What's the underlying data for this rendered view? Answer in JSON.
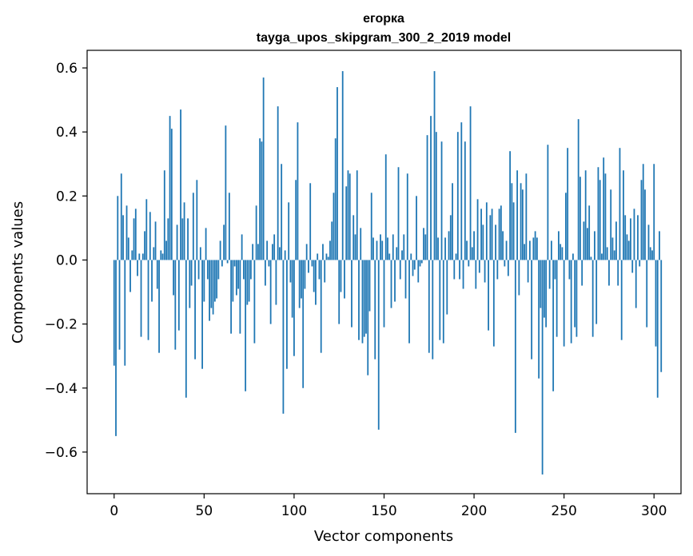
{
  "chart_data": {
    "type": "bar",
    "title": "егорка",
    "subtitle": "tayga_upos_skipgram_300_2_2019 model",
    "xlabel": "Vector components",
    "ylabel": "Components values",
    "xlim": [
      -15,
      315
    ],
    "ylim": [
      -0.73,
      0.655
    ],
    "x_ticks": [
      0,
      50,
      100,
      150,
      200,
      250,
      300
    ],
    "x_tick_labels": [
      "0",
      "50",
      "100",
      "150",
      "200",
      "250",
      "300"
    ],
    "y_ticks": [
      0.6,
      0.4,
      0.2,
      0.0,
      -0.2,
      -0.4,
      -0.6
    ],
    "y_tick_labels": [
      "0.6",
      "0.4",
      "0.2",
      "0.0",
      "−0.2",
      "−0.4",
      "−0.6"
    ],
    "grid": false,
    "bar_color": "#1f77b4",
    "values": [
      -0.33,
      -0.55,
      0.2,
      -0.28,
      0.27,
      0.14,
      -0.33,
      0.17,
      0.07,
      -0.1,
      0.03,
      0.13,
      0.16,
      -0.05,
      0.02,
      -0.24,
      0.02,
      0.09,
      0.19,
      -0.25,
      0.15,
      -0.13,
      0.04,
      0.12,
      -0.09,
      -0.29,
      0.03,
      0.02,
      0.28,
      0.06,
      0.13,
      0.45,
      0.41,
      -0.11,
      -0.28,
      0.11,
      -0.22,
      0.47,
      0.13,
      0.18,
      -0.43,
      0.13,
      -0.15,
      -0.08,
      0.21,
      -0.31,
      0.25,
      -0.06,
      0.04,
      -0.34,
      -0.13,
      0.1,
      -0.06,
      -0.19,
      -0.15,
      -0.17,
      -0.13,
      -0.12,
      -0.06,
      0.06,
      -0.02,
      0.11,
      0.42,
      -0.01,
      0.21,
      -0.23,
      -0.13,
      -0.02,
      -0.11,
      -0.09,
      -0.23,
      0.08,
      -0.06,
      -0.41,
      -0.14,
      -0.13,
      -0.06,
      0.05,
      -0.26,
      0.17,
      0.05,
      0.38,
      0.37,
      0.57,
      -0.08,
      0.06,
      -0.02,
      -0.2,
      0.05,
      0.08,
      -0.14,
      0.48,
      0.04,
      0.3,
      -0.48,
      0.03,
      -0.34,
      0.18,
      -0.07,
      -0.18,
      -0.3,
      0.25,
      0.43,
      -0.15,
      -0.12,
      -0.4,
      -0.09,
      0.05,
      -0.04,
      0.24,
      -0.02,
      -0.1,
      -0.14,
      0.02,
      -0.06,
      -0.29,
      0.05,
      -0.07,
      0.02,
      0.01,
      0.06,
      0.12,
      0.21,
      0.38,
      0.54,
      -0.2,
      -0.1,
      0.59,
      -0.12,
      0.23,
      0.28,
      0.27,
      -0.21,
      0.14,
      0.08,
      0.28,
      -0.25,
      0.1,
      -0.26,
      -0.24,
      -0.23,
      -0.36,
      -0.16,
      0.21,
      0.07,
      -0.31,
      0.06,
      -0.53,
      0.08,
      0.06,
      -0.21,
      0.33,
      0.07,
      0.02,
      -0.15,
      0.08,
      -0.13,
      0.04,
      0.29,
      -0.06,
      0.03,
      0.08,
      -0.12,
      0.27,
      -0.26,
      0.02,
      -0.05,
      -0.03,
      0.2,
      -0.07,
      -0.02,
      -0.01,
      0.1,
      0.08,
      0.39,
      -0.29,
      0.45,
      -0.31,
      0.59,
      0.4,
      0.07,
      -0.25,
      0.37,
      -0.26,
      0.07,
      -0.17,
      0.09,
      0.14,
      0.24,
      -0.06,
      0.02,
      0.4,
      -0.06,
      0.43,
      -0.09,
      0.37,
      0.06,
      -0.02,
      0.48,
      0.04,
      0.09,
      -0.09,
      0.19,
      -0.04,
      0.16,
      0.11,
      -0.07,
      0.18,
      -0.22,
      0.14,
      0.16,
      -0.27,
      0.11,
      -0.06,
      0.16,
      0.17,
      0.09,
      -0.02,
      0.06,
      -0.05,
      0.34,
      0.24,
      0.18,
      -0.54,
      0.28,
      -0.11,
      0.24,
      0.22,
      0.05,
      0.27,
      -0.07,
      0.06,
      -0.31,
      0.07,
      0.09,
      0.07,
      -0.37,
      -0.15,
      -0.67,
      -0.18,
      -0.21,
      0.36,
      -0.09,
      0.06,
      -0.41,
      -0.06,
      -0.24,
      0.09,
      0.05,
      0.04,
      -0.27,
      0.21,
      0.35,
      -0.06,
      -0.26,
      0.02,
      -0.21,
      -0.24,
      0.44,
      0.26,
      -0.08,
      0.12,
      0.28,
      0.1,
      0.17,
      0.01,
      -0.24,
      0.09,
      -0.2,
      0.29,
      0.25,
      0.02,
      0.32,
      0.27,
      0.04,
      -0.08,
      0.22,
      0.07,
      0.03,
      0.12,
      -0.08,
      0.35,
      -0.25,
      0.28,
      0.14,
      0.08,
      0.06,
      0.13,
      -0.04,
      0.16,
      -0.15,
      0.14,
      -0.02,
      0.25,
      0.3,
      0.22,
      -0.21,
      0.11,
      0.04,
      0.03,
      0.3,
      -0.27,
      -0.43,
      0.09,
      -0.35
    ]
  }
}
